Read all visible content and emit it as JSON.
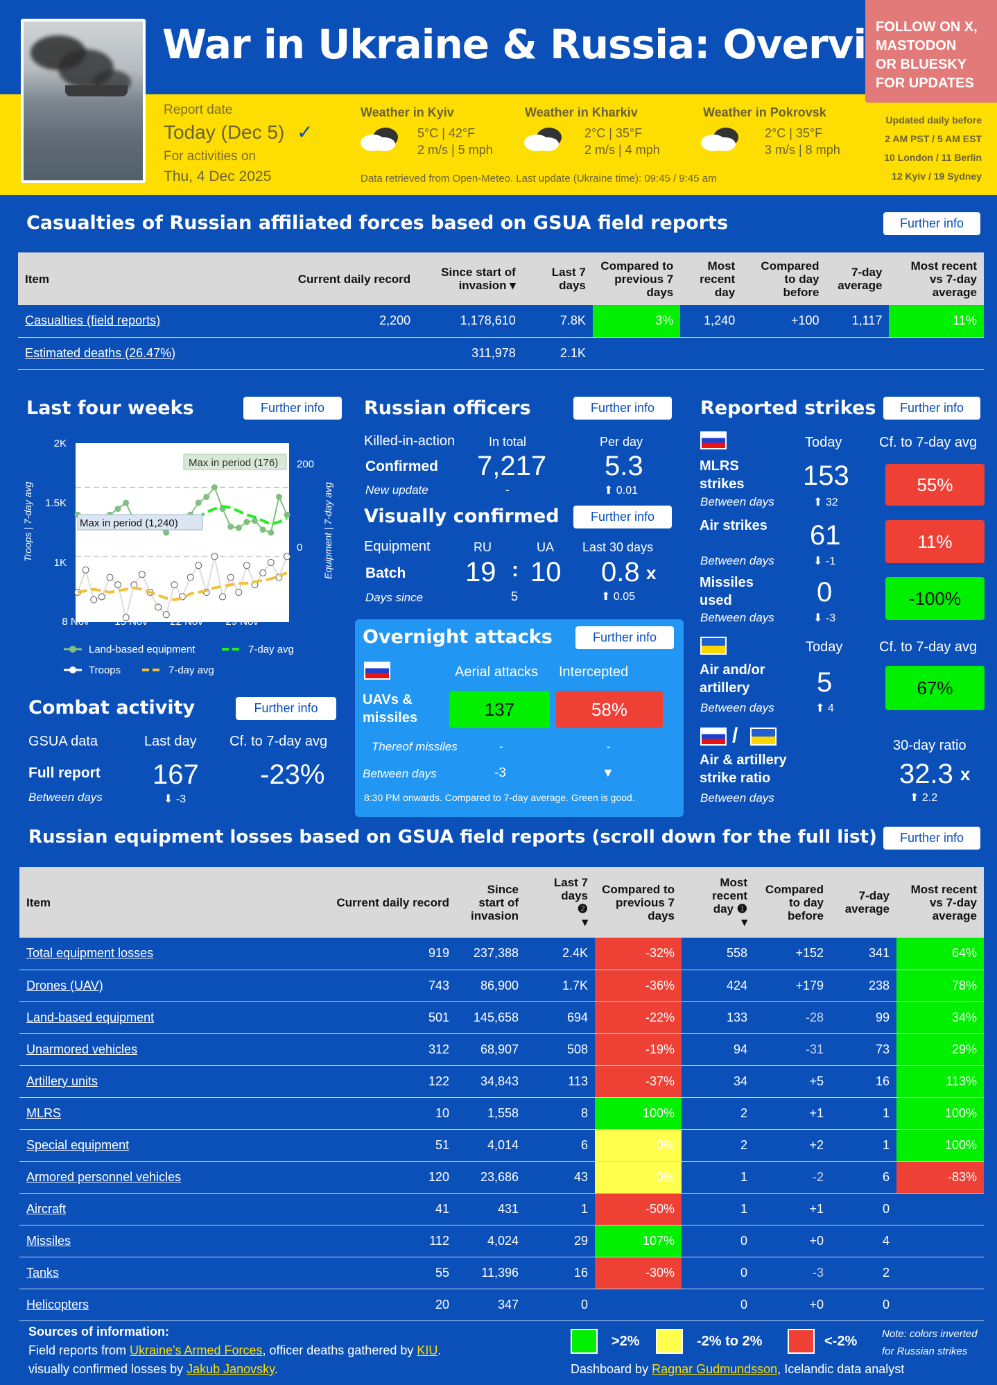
{
  "header": {
    "title": "War in Ukraine & Russia: Overview",
    "follow": [
      "FOLLOW ON X,",
      "MASTODON",
      "OR BLUESKY",
      "FOR UPDATES"
    ],
    "report_label": "Report date",
    "report_value": "Today (Dec 5)",
    "activities_label": "For activities on",
    "activities_value": "Thu, 4 Dec 2025",
    "weather": [
      {
        "title": "Weather in Kyiv",
        "temp": "5°C | 42°F",
        "wind": "2 m/s | 5 mph"
      },
      {
        "title": "Weather in Kharkiv",
        "temp": "2°C | 35°F",
        "wind": "2 m/s | 4 mph"
      },
      {
        "title": "Weather in Pokrovsk",
        "temp": "2°C | 35°F",
        "wind": "3 m/s | 8 mph"
      }
    ],
    "weather_note": "Data retrieved from Open-Meteo. Last update (Ukraine time): 09:45 / 9:45 am",
    "updated": [
      "Updated daily before",
      "2 AM PST / 5 AM EST",
      "10 London / 11 Berlin",
      "12 Kyiv / 19 Sydney"
    ]
  },
  "casualties": {
    "title": "Casualties of Russian affiliated forces based on GSUA field reports",
    "further": "Further info",
    "headers": [
      "Item",
      "Current daily record",
      "Since start of invasion",
      "Last 7 days",
      "Compared to previous 7 days",
      "Most recent day",
      "Compared to day before",
      "7-day average",
      "Most recent vs 7-day average"
    ],
    "rows": [
      [
        "Casualties (field reports)",
        "2,200",
        "1,178,610",
        "7.8K",
        "3%",
        "1,240",
        "+100",
        "1,117",
        "11%"
      ],
      [
        "Estimated deaths (26.47%)",
        "",
        "311,978",
        "2.1K",
        "",
        "",
        "",
        "",
        ""
      ]
    ]
  },
  "four_weeks": {
    "title": "Last four weeks",
    "further": "Further info",
    "y_left": [
      "2K",
      "1.5K",
      "1K"
    ],
    "y_right": [
      "200",
      "0"
    ],
    "x_ticks": [
      "8 Nov",
      "15 Nov",
      "22 Nov",
      "29 Nov"
    ],
    "ylabel_left": "Troops | 7-day avg",
    "ylabel_right": "Equipment | 7-day avg",
    "max_eq": "Max in period (176)",
    "max_tr": "Max in period (1,240)",
    "legend": [
      "Land-based equipment",
      "7-day avg",
      "Troops",
      "7-day avg"
    ]
  },
  "chart_data": {
    "type": "line",
    "x": [
      "8 Nov",
      "9 Nov",
      "10 Nov",
      "11 Nov",
      "12 Nov",
      "13 Nov",
      "14 Nov",
      "15 Nov",
      "16 Nov",
      "17 Nov",
      "18 Nov",
      "19 Nov",
      "20 Nov",
      "21 Nov",
      "22 Nov",
      "23 Nov",
      "24 Nov",
      "25 Nov",
      "26 Nov",
      "27 Nov",
      "28 Nov",
      "29 Nov",
      "30 Nov",
      "1 Dec",
      "2 Dec",
      "3 Dec",
      "4 Dec"
    ],
    "series": [
      {
        "name": "Land-based equipment",
        "axis": "right",
        "values": [
          130,
          120,
          110,
          120,
          130,
          140,
          150,
          120,
          115,
          110,
          110,
          100,
          120,
          125,
          130,
          150,
          160,
          176,
          140,
          110,
          108,
          118,
          120,
          105,
          100,
          160,
          130
        ]
      },
      {
        "name": "7-day avg",
        "axis": "right",
        "values": [
          130,
          126,
          122,
          118,
          116,
          118,
          124,
          128,
          126,
          120,
          116,
          112,
          108,
          110,
          118,
          126,
          134,
          140,
          144,
          142,
          136,
          130,
          126,
          120,
          114,
          118,
          124
        ]
      },
      {
        "name": "Troops",
        "axis": "left",
        "values": [
          1000,
          1150,
          950,
          970,
          1100,
          1050,
          830,
          1050,
          1120,
          1000,
          900,
          850,
          1050,
          970,
          1100,
          1180,
          1000,
          1240,
          970,
          1100,
          1000,
          1180,
          1050,
          1130,
          1200,
          1100,
          1240
        ]
      },
      {
        "name": "7-day avg",
        "axis": "left",
        "values": [
          1000,
          1010,
          1020,
          1010,
          1000,
          1010,
          1020,
          1030,
          1020,
          1000,
          980,
          960,
          950,
          960,
          990,
          1000,
          1010,
          1030,
          1040,
          1050,
          1060,
          1060,
          1070,
          1080,
          1090,
          1110,
          1130
        ]
      }
    ],
    "ylim_left": [
      800,
      2000
    ],
    "ylim_right": [
      -50,
      250
    ]
  },
  "officers": {
    "title": "Russian officers",
    "further": "Further info",
    "kia": "Killed-in-action",
    "in_total": "In total",
    "per_day": "Per day",
    "confirmed": "Confirmed",
    "total": "7,217",
    "per_day_v": "5.3",
    "new_update": "New update",
    "dash": "-",
    "per_day_change": "0.01"
  },
  "visual": {
    "title": "Visually confirmed",
    "further": "Further info",
    "equipment": "Equipment",
    "ru": "RU",
    "ua": "UA",
    "last30": "Last 30 days",
    "batch": "Batch",
    "ru_v": "19",
    "ua_v": "10",
    "ratio": "0.8",
    "x": "x",
    "days_since": "Days since",
    "days_v": "5",
    "ratio_change": "0.05"
  },
  "strikes": {
    "title": "Reported strikes",
    "further": "Further info",
    "today": "Today",
    "cf": "Cf. to 7-day avg",
    "items": [
      {
        "label": "MLRS strikes",
        "between": "Between days",
        "today": "153",
        "chg": "32",
        "pct": "55%"
      },
      {
        "label": "Air strikes",
        "between": "Between days",
        "today": "61",
        "chg": "-1",
        "pct": "11%"
      },
      {
        "label": "Missiles used",
        "between": "Between days",
        "today": "0",
        "chg": "-3",
        "pct": "-100%"
      }
    ],
    "ua_today": "Today",
    "ua_cf": "Cf. to 7-day avg",
    "ua_item": {
      "label": "Air and/or artillery",
      "between": "Between days",
      "today": "5",
      "chg": "4",
      "pct": "67%"
    },
    "ratio_label": "Air & artillery strike ratio",
    "ratio_title": "30-day ratio",
    "ratio_v": "32.3",
    "ratio_x": "x",
    "ratio_between": "Between days",
    "ratio_chg": "2.2",
    "slash": "/"
  },
  "combat": {
    "title": "Combat activity",
    "further": "Further info",
    "gsua": "GSUA data",
    "last_day": "Last day",
    "cf": "Cf. to 7-day avg",
    "full": "Full report",
    "v": "167",
    "pct": "-23%",
    "between": "Between days",
    "chg": "-3"
  },
  "overnight": {
    "title": "Overnight attacks",
    "further": "Further info",
    "aerial": "Aerial attacks",
    "intercepted": "Intercepted",
    "uavs": "UAVs & missiles",
    "aerial_v": "137",
    "intercepted_v": "58%",
    "thereof": "Thereof missiles",
    "dash1": "-",
    "dash2": "-",
    "between": "Between days",
    "chg": "-3",
    "arrow": "▼",
    "note": "8:30 PM onwards. Compared to 7-day average. Green is good."
  },
  "equipment": {
    "title": "Russian equipment losses based on GSUA field reports (scroll down for the full list)",
    "further": "Further info",
    "headers": [
      "Item",
      "Current daily record",
      "Since start of invasion",
      "Last 7 days",
      "Compared to previous 7 days",
      "Most recent day",
      "Compared to day before",
      "7-day average",
      "Most recent vs 7-day average"
    ],
    "rows": [
      [
        "Total equipment losses",
        "919",
        "237,388",
        "2.4K",
        "-32%",
        "558",
        "+152",
        "341",
        "64%"
      ],
      [
        "Drones (UAV)",
        "743",
        "86,900",
        "1.7K",
        "-36%",
        "424",
        "+179",
        "238",
        "78%"
      ],
      [
        "Land-based equipment",
        "501",
        "145,658",
        "694",
        "-22%",
        "133",
        "-28",
        "99",
        "34%"
      ],
      [
        "Unarmored vehicles",
        "312",
        "68,907",
        "508",
        "-19%",
        "94",
        "-31",
        "73",
        "29%"
      ],
      [
        "Artillery units",
        "122",
        "34,843",
        "113",
        "-37%",
        "34",
        "+5",
        "16",
        "113%"
      ],
      [
        "MLRS",
        "10",
        "1,558",
        "8",
        "100%",
        "2",
        "+1",
        "1",
        "100%"
      ],
      [
        "Special equipment",
        "51",
        "4,014",
        "6",
        "0%",
        "2",
        "+2",
        "1",
        "100%"
      ],
      [
        "Armored personnel vehicles",
        "120",
        "23,686",
        "43",
        "0%",
        "1",
        "-2",
        "6",
        "-83%"
      ],
      [
        "Aircraft",
        "41",
        "431",
        "1",
        "-50%",
        "1",
        "+1",
        "0",
        ""
      ],
      [
        "Missiles",
        "112",
        "4,024",
        "29",
        "107%",
        "0",
        "+0",
        "4",
        ""
      ],
      [
        "Tanks",
        "55",
        "11,396",
        "16",
        "-30%",
        "0",
        "-3",
        "2",
        ""
      ],
      [
        "Helicopters",
        "20",
        "347",
        "0",
        "",
        "0",
        "+0",
        "0",
        ""
      ]
    ]
  },
  "footer": {
    "sources": "Sources of information:",
    "line1a": "Field reports from ",
    "line1link": "Ukraine's Armed Forces",
    "line1b": ", officer deaths gathered by ",
    "line1link2": "KIU",
    "line2a": "visually confirmed losses by ",
    "line2link": "Jakub Janovsky",
    "leg_g": ">2%",
    "leg_y": "-2% to 2%",
    "leg_r": "<-2%",
    "note": "Note: colors inverted",
    "note2": "for Russian strikes",
    "by": "Dashboard by ",
    "by_link": "Ragnar Gudmundsson",
    "by_tail": ", Icelandic data analyst"
  }
}
